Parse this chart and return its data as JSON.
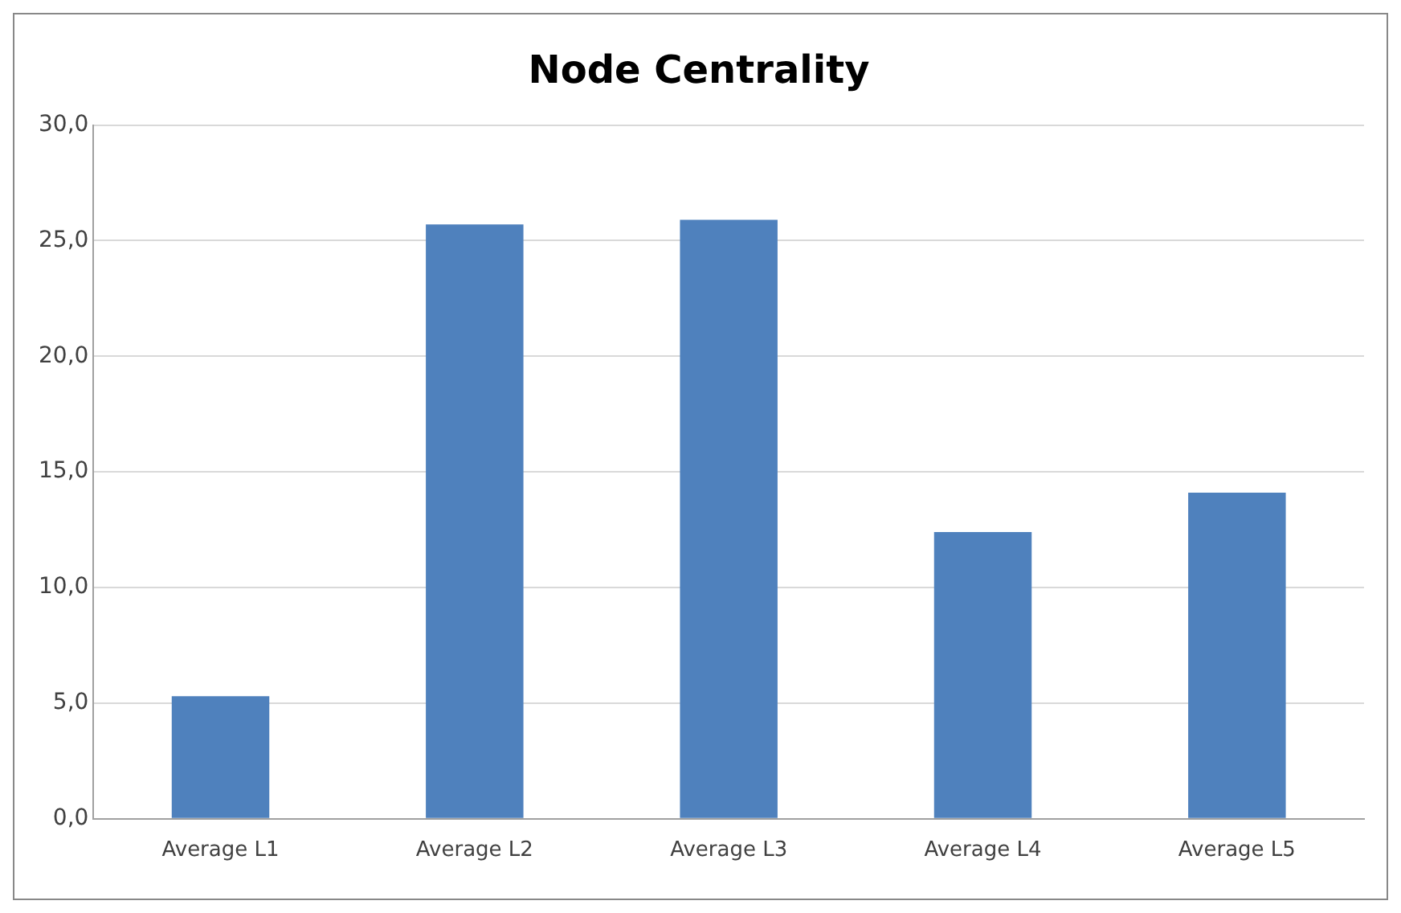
{
  "chart_data": {
    "type": "bar",
    "title": "Node Centrality",
    "categories": [
      "Average L1",
      "Average L2",
      "Average L3",
      "Average L4",
      "Average L5"
    ],
    "values": [
      5.3,
      25.7,
      25.9,
      12.4,
      14.1
    ],
    "color": "#4f81bd",
    "ylim": [
      0,
      30
    ],
    "yticks": [
      {
        "value": 0,
        "label": "0,0"
      },
      {
        "value": 5,
        "label": "5,0"
      },
      {
        "value": 10,
        "label": "10,0"
      },
      {
        "value": 15,
        "label": "15,0"
      },
      {
        "value": 20,
        "label": "20,0"
      },
      {
        "value": 25,
        "label": "25,0"
      },
      {
        "value": 30,
        "label": "30,0"
      }
    ],
    "grid": "y"
  }
}
